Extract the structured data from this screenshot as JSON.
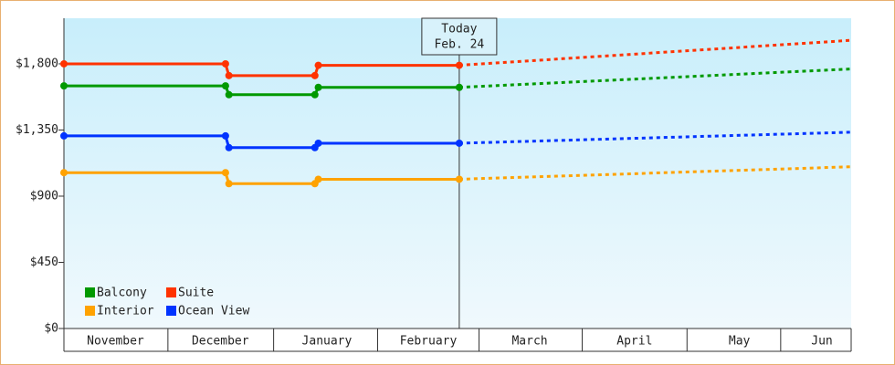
{
  "chart_data": {
    "type": "line",
    "x": [
      0,
      47,
      48,
      73,
      74,
      115,
      229
    ],
    "xlim": [
      0,
      229
    ],
    "xticks": [
      {
        "value": 15,
        "label": "November"
      },
      {
        "value": 45.5,
        "label": "December"
      },
      {
        "value": 76.5,
        "label": "January"
      },
      {
        "value": 106,
        "label": "February"
      },
      {
        "value": 135.5,
        "label": "March"
      },
      {
        "value": 166,
        "label": "April"
      },
      {
        "value": 196.5,
        "label": "May"
      },
      {
        "value": 220.5,
        "label": "Jun"
      }
    ],
    "ylim": [
      0,
      2110
    ],
    "yticks": [
      {
        "value": 0,
        "label": "$0"
      },
      {
        "value": 450,
        "label": "$450"
      },
      {
        "value": 900,
        "label": "$900"
      },
      {
        "value": 1350,
        "label": "$1,350"
      },
      {
        "value": 1800,
        "label": "$1,800"
      }
    ],
    "annotation": {
      "x": 115,
      "text": [
        "Today",
        "Feb. 24"
      ]
    },
    "legend": "lower left",
    "series": [
      {
        "name": "Balcony",
        "color": "#009900",
        "values": [
          1650,
          1650,
          1590,
          1590,
          1640,
          1640,
          1765
        ]
      },
      {
        "name": "Suite",
        "color": "#ff3300",
        "values": [
          1800,
          1800,
          1720,
          1720,
          1790,
          1790,
          1960
        ]
      },
      {
        "name": "Interior",
        "color": "#ffa200",
        "values": [
          1060,
          1060,
          985,
          985,
          1015,
          1015,
          1100
        ]
      },
      {
        "name": "Ocean View",
        "color": "#0033ff",
        "values": [
          1310,
          1310,
          1230,
          1230,
          1260,
          1260,
          1335
        ]
      }
    ]
  }
}
